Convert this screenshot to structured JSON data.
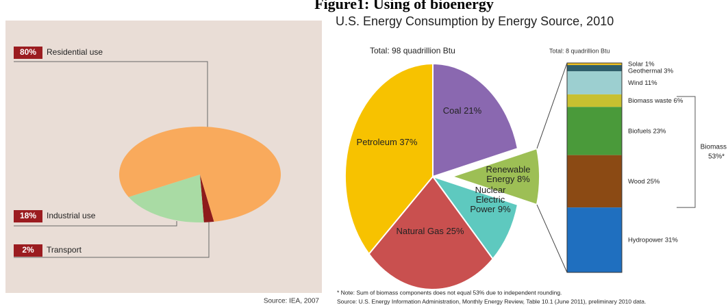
{
  "title": "Figure1: Using of bioenergy",
  "chart_data": [
    {
      "type": "pie",
      "categories": [
        "Residential use",
        "Industrial use",
        "Transport"
      ],
      "values": [
        80,
        18,
        2
      ],
      "value_labels": [
        "80%",
        "18%",
        "2%"
      ],
      "colors": [
        "#f9aa5c",
        "#a9dba4",
        "#8e1b1b"
      ],
      "source": "Source: IEA, 2007"
    },
    {
      "type": "pie",
      "title": "U.S. Energy Consumption by Energy Source, 2010",
      "subtitle": "Total:  98 quadrillion Btu",
      "categories": [
        "Coal",
        "Renewable Energy",
        "Nuclear Electric Power",
        "Natural Gas",
        "Petroleum"
      ],
      "values": [
        21,
        8,
        9,
        25,
        37
      ],
      "value_labels": [
        "21%",
        "8%",
        "9%",
        "25%",
        "37%"
      ],
      "colors": [
        "#8a68b0",
        "#9dbf55",
        "#5ec9bf",
        "#c9504f",
        "#f7c200"
      ],
      "explode": [
        false,
        true,
        false,
        false,
        false
      ]
    },
    {
      "type": "stacked_bar",
      "subtitle": "Total: 8 quadrillion Btu",
      "categories": [
        "Solar",
        "Geothermal",
        "Wind",
        "Biomass waste",
        "Biofuels",
        "Wood",
        "Hydropower"
      ],
      "values": [
        1,
        3,
        11,
        6,
        23,
        25,
        31
      ],
      "value_labels": [
        "1%",
        "3%",
        "11%",
        "6%",
        "23%",
        "25%",
        "31%"
      ],
      "colors": [
        "#f0c020",
        "#2e5e6a",
        "#9ccfd0",
        "#c8c030",
        "#4a9a3a",
        "#8b4a14",
        "#1f6fbf"
      ],
      "bracket": {
        "name": "Biomass",
        "value": 53,
        "value_label": "53%*"
      },
      "note": "* Note: Sum of biomass components does not equal 53% due to independent rounding.",
      "source": "Source: U.S. Energy Information Administration, Monthly Energy Review, Table 10.1 (June 2011), preliminary 2010 data."
    }
  ]
}
